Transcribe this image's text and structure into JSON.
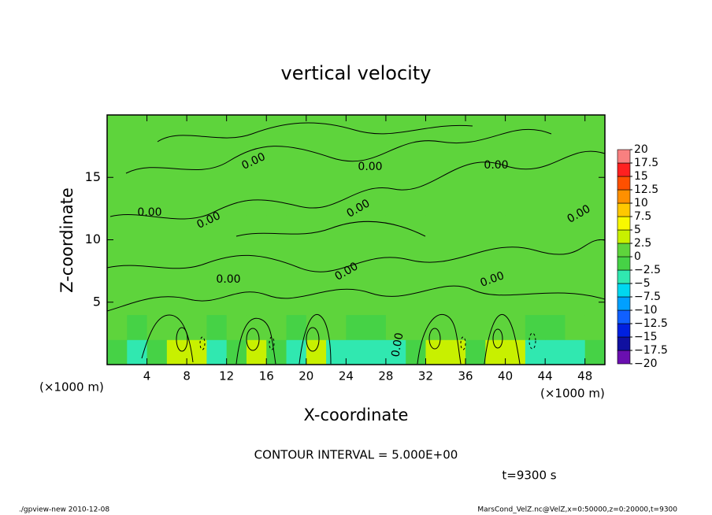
{
  "chart_data": {
    "type": "contour",
    "title": "vertical velocity",
    "xlabel": "X-coordinate",
    "ylabel": "Z-coordinate",
    "x_unit_label": "(×1000 m)",
    "xlim": [
      0,
      50
    ],
    "ylim": [
      0,
      20
    ],
    "xticks": [
      4,
      8,
      12,
      16,
      20,
      24,
      28,
      32,
      36,
      40,
      44,
      48
    ],
    "yticks": [
      5,
      10,
      15
    ],
    "contour_label": {
      "value": 0,
      "label": "0.00"
    },
    "contour_interval_text": "CONTOUR INTERVAL = 5.000E+00",
    "time_text": "t=9300 s",
    "footer_left": "./gpview-new   2010-12-08",
    "footer_right": "MarsCond_VelZ.nc@VelZ,x=0:50000,z=0:20000,t=9300",
    "colorbar": {
      "levels": [
        {
          "value": -20,
          "label": "−20"
        },
        {
          "value": -17.5,
          "label": "−17.5"
        },
        {
          "value": -15,
          "label": "−15"
        },
        {
          "value": -12.5,
          "label": "−12.5"
        },
        {
          "value": -10,
          "label": "−10"
        },
        {
          "value": -7.5,
          "label": "−7.5"
        },
        {
          "value": -5,
          "label": "−5"
        },
        {
          "value": -2.5,
          "label": "−2.5"
        },
        0,
        2.5,
        5,
        7.5,
        10,
        12.5,
        15,
        17.5,
        20
      ],
      "colors": [
        "#6a0fb0",
        "#1010a0",
        "#0020e0",
        "#1060ff",
        "#00a0ff",
        "#00d8f0",
        "#30e8b0",
        "#46d246",
        "#5ed43c",
        "#c8f000",
        "#f8f800",
        "#ffc800",
        "#ff9000",
        "#ff5000",
        "#ff2020",
        "#f88080"
      ]
    },
    "field": {
      "x": [
        1,
        3,
        5,
        7,
        9,
        11,
        13,
        15,
        17,
        19,
        21,
        23,
        25,
        27,
        29,
        31,
        33,
        35,
        37,
        39,
        41,
        43,
        45,
        47,
        49
      ],
      "z": [
        1,
        3,
        5,
        7,
        9,
        11,
        13,
        15,
        17,
        19
      ],
      "values": [
        [
          -1,
          -3,
          -1,
          2.6,
          2.6,
          -3,
          -2,
          2.6,
          -1,
          -3,
          2.6,
          -3,
          -3,
          -3,
          -3,
          -1,
          2.6,
          2.6,
          -1,
          2.6,
          2.6,
          -3,
          -3,
          -3,
          -1
        ],
        [
          0.5,
          -1,
          0.5,
          0.5,
          0.5,
          -1,
          0.5,
          0.5,
          0.5,
          -1,
          0.5,
          0.5,
          -1,
          -1,
          0.5,
          0.5,
          0.5,
          0.5,
          0.5,
          0.5,
          0.5,
          -1,
          -1,
          0.5,
          0.5
        ],
        [
          0.5,
          0.5,
          0.5,
          0.5,
          0.5,
          0.5,
          0.5,
          0.5,
          0.5,
          0.5,
          0.5,
          0.5,
          0.5,
          0.5,
          0.5,
          0.5,
          0.5,
          0.5,
          0.5,
          0.5,
          0.5,
          0.5,
          0.5,
          0.5,
          0.5
        ],
        [
          0.5,
          0.5,
          0.5,
          0.5,
          0.5,
          0.5,
          0.5,
          0.5,
          0.5,
          0.5,
          0.5,
          0.5,
          0.5,
          0.5,
          0.5,
          0.5,
          0.5,
          0.5,
          0.5,
          0.5,
          0.5,
          0.5,
          0.5,
          0.5,
          0.5
        ],
        [
          0.5,
          0.5,
          0.5,
          0.5,
          0.5,
          0.5,
          0.5,
          0.5,
          0.5,
          0.5,
          0.5,
          0.5,
          0.5,
          0.5,
          0.5,
          0.5,
          0.5,
          0.5,
          0.5,
          0.5,
          0.5,
          0.5,
          0.5,
          0.5,
          0.5
        ],
        [
          0.5,
          0.5,
          0.5,
          0.5,
          0.5,
          0.5,
          0.5,
          0.5,
          0.5,
          0.5,
          0.5,
          0.5,
          0.5,
          0.5,
          0.5,
          0.5,
          0.5,
          0.5,
          0.5,
          0.5,
          0.5,
          0.5,
          0.5,
          0.5,
          0.5
        ],
        [
          0.5,
          0.5,
          0.5,
          0.5,
          0.5,
          0.5,
          0.5,
          0.5,
          0.5,
          0.5,
          0.5,
          0.5,
          0.5,
          0.5,
          0.5,
          0.5,
          0.5,
          0.5,
          0.5,
          0.5,
          0.5,
          0.5,
          0.5,
          0.5,
          0.5
        ],
        [
          0.5,
          0.5,
          0.5,
          0.5,
          0.5,
          0.5,
          0.5,
          0.5,
          0.5,
          0.5,
          0.5,
          0.5,
          0.5,
          0.5,
          0.5,
          0.5,
          0.5,
          0.5,
          0.5,
          0.5,
          0.5,
          0.5,
          0.5,
          0.5,
          0.5
        ],
        [
          0.5,
          0.5,
          0.5,
          0.5,
          0.5,
          0.5,
          0.5,
          0.5,
          0.5,
          0.5,
          0.5,
          0.5,
          0.5,
          0.5,
          0.5,
          0.5,
          0.5,
          0.5,
          0.5,
          0.5,
          0.5,
          0.5,
          0.5,
          0.5,
          0.5
        ],
        [
          0.5,
          0.5,
          0.5,
          0.5,
          0.5,
          0.5,
          0.5,
          0.5,
          0.5,
          0.5,
          0.5,
          0.5,
          0.5,
          0.5,
          0.5,
          0.5,
          0.5,
          0.5,
          0.5,
          0.5,
          0.5,
          0.5,
          0.5,
          0.5,
          0.5
        ]
      ]
    }
  }
}
